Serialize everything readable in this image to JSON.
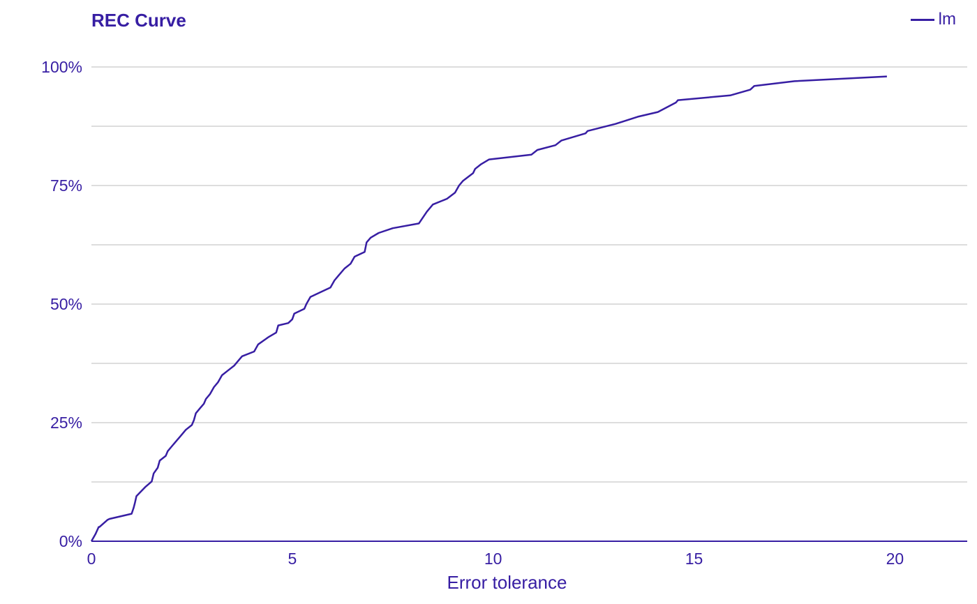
{
  "chart_data": {
    "type": "line",
    "title": "REC Curve",
    "xlabel": "Error tolerance",
    "ylabel": "",
    "xlim": [
      0,
      21.8
    ],
    "ylim": [
      0,
      1
    ],
    "x_ticks": [
      0,
      5,
      10,
      15,
      20
    ],
    "x_tick_labels": [
      "0",
      "5",
      "10",
      "15",
      "20"
    ],
    "y_ticks": [
      0,
      0.25,
      0.5,
      0.75,
      1.0
    ],
    "y_tick_labels": [
      "0%",
      "25%",
      "50%",
      "75%",
      "100%"
    ],
    "y_minor_grid": [
      0.125,
      0.375,
      0.625,
      0.875
    ],
    "grid": "horizontal",
    "legend_position": "top-right",
    "colors": {
      "line": "#371ea3",
      "grid": "#dddddd",
      "text": "#371ea3"
    },
    "series": [
      {
        "name": "lm",
        "x": [
          0,
          0.1,
          0.18,
          0.2,
          0.4,
          0.45,
          1.0,
          1.05,
          1.08,
          1.12,
          1.35,
          1.5,
          1.55,
          1.65,
          1.7,
          1.85,
          1.9,
          2.0,
          2.1,
          2.2,
          2.35,
          2.5,
          2.55,
          2.6,
          2.7,
          2.8,
          2.85,
          2.95,
          3.05,
          3.15,
          3.25,
          3.4,
          3.55,
          3.7,
          3.75,
          4.05,
          4.15,
          4.4,
          4.6,
          4.65,
          4.9,
          5.0,
          5.05,
          5.3,
          5.35,
          5.45,
          5.7,
          5.95,
          6.05,
          6.15,
          6.3,
          6.45,
          6.55,
          6.8,
          6.85,
          6.95,
          7.15,
          7.5,
          8.15,
          8.35,
          8.5,
          8.85,
          9.05,
          9.15,
          9.25,
          9.5,
          9.55,
          9.7,
          9.9,
          10.95,
          11.1,
          11.55,
          11.7,
          12.3,
          12.35,
          13.05,
          13.6,
          14.1,
          14.55,
          14.6,
          15.9,
          16.4,
          16.5,
          17.5,
          19.8
        ],
        "y": [
          0,
          0.015,
          0.03,
          0.03,
          0.045,
          0.047,
          0.058,
          0.07,
          0.08,
          0.095,
          0.115,
          0.126,
          0.143,
          0.155,
          0.17,
          0.18,
          0.19,
          0.2,
          0.21,
          0.22,
          0.235,
          0.245,
          0.255,
          0.27,
          0.28,
          0.29,
          0.3,
          0.31,
          0.325,
          0.335,
          0.35,
          0.36,
          0.37,
          0.385,
          0.39,
          0.4,
          0.415,
          0.43,
          0.44,
          0.455,
          0.46,
          0.468,
          0.48,
          0.49,
          0.5,
          0.515,
          0.525,
          0.535,
          0.55,
          0.56,
          0.575,
          0.585,
          0.6,
          0.61,
          0.63,
          0.64,
          0.65,
          0.66,
          0.67,
          0.695,
          0.71,
          0.722,
          0.735,
          0.75,
          0.76,
          0.776,
          0.785,
          0.795,
          0.805,
          0.815,
          0.825,
          0.835,
          0.845,
          0.86,
          0.865,
          0.88,
          0.895,
          0.905,
          0.925,
          0.93,
          0.94,
          0.952,
          0.96,
          0.97,
          0.98
        ]
      }
    ]
  }
}
